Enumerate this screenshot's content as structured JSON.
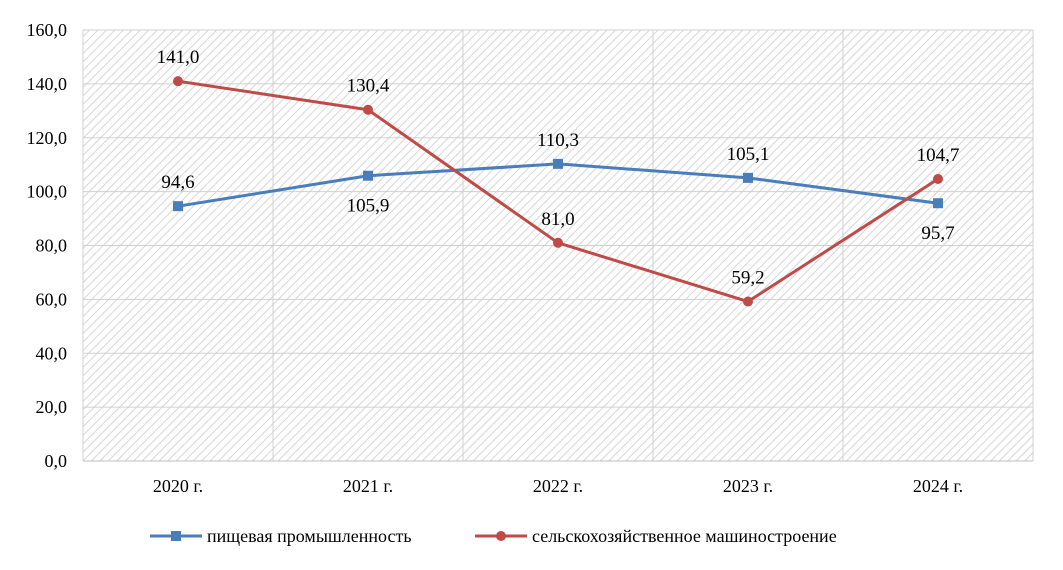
{
  "chart_data": {
    "type": "line",
    "title": "",
    "xlabel": "",
    "ylabel": "",
    "categories": [
      "2020 г.",
      "2021 г.",
      "2022 г.",
      "2023 г.",
      "2024 г."
    ],
    "ylim": [
      0,
      160
    ],
    "yticks": [
      0,
      20,
      40,
      60,
      80,
      100,
      120,
      140,
      160
    ],
    "ytick_labels": [
      "0,0",
      "20,0",
      "40,0",
      "60,0",
      "80,0",
      "100,0",
      "120,0",
      "140,0",
      "160,0"
    ],
    "grid": true,
    "legend_position": "bottom",
    "series": [
      {
        "name": "пищевая промышленность",
        "color": "#4a7ebb",
        "marker": "square",
        "values": [
          94.6,
          105.9,
          110.3,
          105.1,
          95.7
        ],
        "labels": [
          "94,6",
          "105,9",
          "110,3",
          "105,1",
          "95,7"
        ]
      },
      {
        "name": "сельскохозяйственное машиностроение",
        "color": "#be4b48",
        "marker": "circle",
        "values": [
          141.0,
          130.4,
          81.0,
          59.2,
          104.7
        ],
        "labels": [
          "141,0",
          "130,4",
          "81,0",
          "59,2",
          "104,7"
        ]
      }
    ]
  }
}
